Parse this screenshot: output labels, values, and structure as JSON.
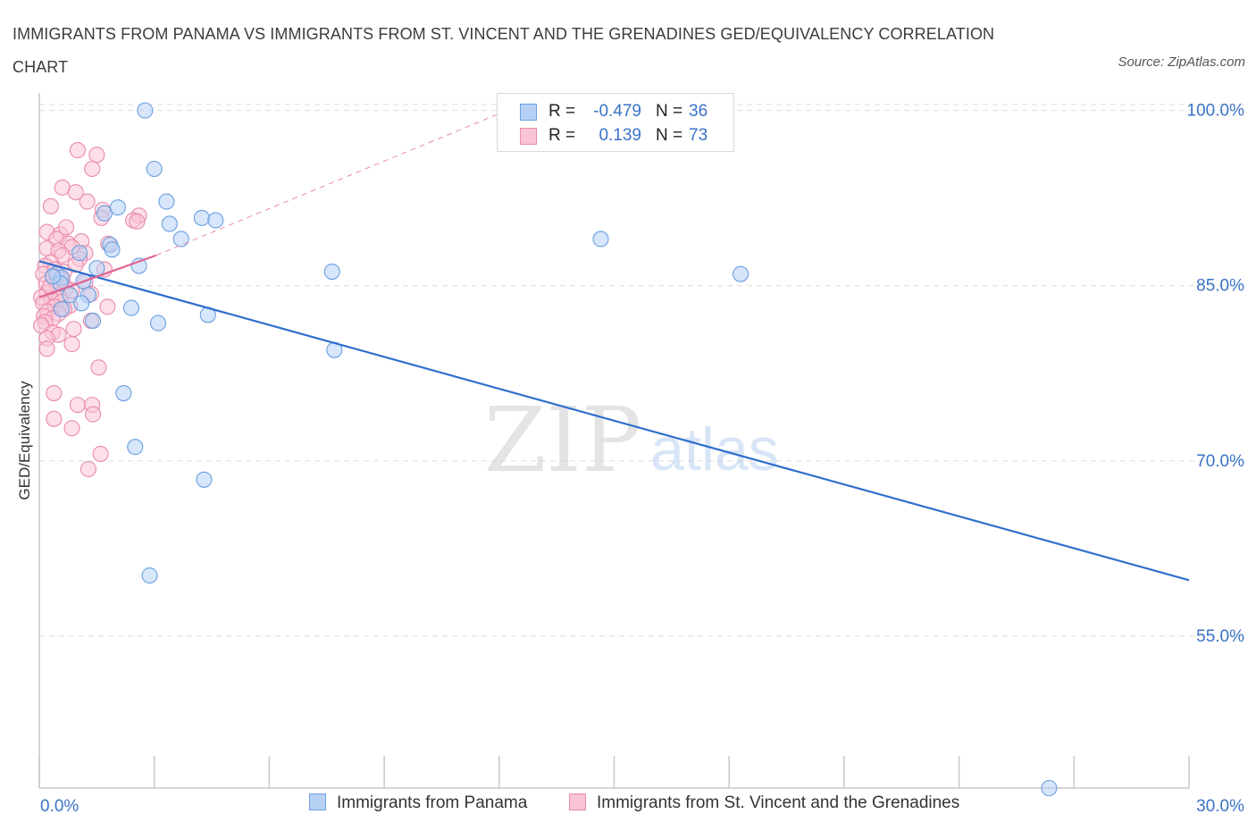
{
  "header": {
    "title": "IMMIGRANTS FROM PANAMA VS IMMIGRANTS FROM ST. VINCENT AND THE GRENADINES GED/EQUIVALENCY CORRELATION CHART",
    "source": "Source: ZipAtlas.com"
  },
  "watermark": {
    "zip": "ZIP",
    "atlas": "atlas"
  },
  "colors": {
    "panama_fill": "#b7d1f5",
    "panama_stroke": "#6a9fe0",
    "panama_line": "#2f6fcc",
    "svg_fill": "#f9c4d5",
    "svg_stroke": "#e98aab",
    "svg_line": "#e06593",
    "axis_text": "#3a73c6",
    "grid": "#dcdcdc"
  },
  "legend": {
    "rows": [
      {
        "r_label": "R =",
        "r_value": "-0.479",
        "n_label": "N =",
        "n_value": "36"
      },
      {
        "r_label": "R =",
        "r_value": "0.139",
        "n_label": "N =",
        "n_value": "73"
      }
    ]
  },
  "bottom_legend": {
    "panama": "Immigrants from Panama",
    "svg": "Immigrants from St. Vincent and the Grenadines"
  },
  "chart_data": {
    "type": "scatter",
    "title": "IMMIGRANTS FROM PANAMA VS IMMIGRANTS FROM ST. VINCENT AND THE GRENADINES GED/EQUIVALENCY CORRELATION CHART",
    "xlabel": "",
    "ylabel": "GED/Equivalency",
    "xlim": [
      0,
      30
    ],
    "ylim": [
      42,
      101.5
    ],
    "x_tick_labels": [
      "0.0%",
      "30.0%"
    ],
    "y_ticks": [
      55,
      70,
      85,
      100
    ],
    "y_tick_labels": [
      "55.0%",
      "70.0%",
      "85.0%",
      "100.0%"
    ],
    "grid": true,
    "series": [
      {
        "name": "Immigrants from Panama",
        "color": "#6a9fe0",
        "R": -0.479,
        "N": 36,
        "trend": {
          "x": [
            0.0,
            30.0
          ],
          "y": [
            87.1,
            59.8
          ]
        },
        "points": [
          [
            2.76,
            100.0
          ],
          [
            3.0,
            95.0
          ],
          [
            3.32,
            92.2
          ],
          [
            4.24,
            90.8
          ],
          [
            4.6,
            90.6
          ],
          [
            3.4,
            90.3
          ],
          [
            2.05,
            91.7
          ],
          [
            1.7,
            91.2
          ],
          [
            3.7,
            89.0
          ],
          [
            1.85,
            88.5
          ],
          [
            1.9,
            88.1
          ],
          [
            1.05,
            87.8
          ],
          [
            2.6,
            86.7
          ],
          [
            1.5,
            86.5
          ],
          [
            0.45,
            86.0
          ],
          [
            0.58,
            85.7
          ],
          [
            0.55,
            85.2
          ],
          [
            0.35,
            85.8
          ],
          [
            1.15,
            85.4
          ],
          [
            0.8,
            84.2
          ],
          [
            1.28,
            84.2
          ],
          [
            1.1,
            83.5
          ],
          [
            0.58,
            83.0
          ],
          [
            2.4,
            83.1
          ],
          [
            4.4,
            82.5
          ],
          [
            1.4,
            82.0
          ],
          [
            3.1,
            81.8
          ],
          [
            7.64,
            86.2
          ],
          [
            14.65,
            89.0
          ],
          [
            18.3,
            86.0
          ],
          [
            7.7,
            79.5
          ],
          [
            2.2,
            75.8
          ],
          [
            2.5,
            71.2
          ],
          [
            4.3,
            68.4
          ],
          [
            2.88,
            60.2
          ],
          [
            26.35,
            42.0
          ]
        ]
      },
      {
        "name": "Immigrants from St. Vincent and the Grenadines",
        "color": "#e98aab",
        "R": 0.139,
        "N": 73,
        "trend": {
          "x": [
            0.0,
            3.05
          ],
          "y": [
            84.0,
            87.6
          ]
        },
        "trend_extension": {
          "x": [
            3.05,
            12.2
          ],
          "y": [
            87.6,
            100.0
          ]
        },
        "points": [
          [
            1.0,
            96.6
          ],
          [
            1.5,
            96.2
          ],
          [
            1.38,
            95.0
          ],
          [
            0.6,
            93.4
          ],
          [
            0.95,
            93.0
          ],
          [
            1.25,
            92.2
          ],
          [
            0.3,
            91.8
          ],
          [
            1.65,
            91.5
          ],
          [
            2.6,
            91.0
          ],
          [
            1.62,
            90.8
          ],
          [
            2.45,
            90.6
          ],
          [
            2.55,
            90.5
          ],
          [
            0.2,
            89.6
          ],
          [
            0.55,
            89.4
          ],
          [
            0.45,
            89.0
          ],
          [
            1.1,
            88.8
          ],
          [
            0.75,
            88.6
          ],
          [
            0.85,
            88.3
          ],
          [
            0.2,
            88.2
          ],
          [
            0.5,
            88.0
          ],
          [
            1.2,
            87.8
          ],
          [
            0.6,
            87.6
          ],
          [
            1.05,
            87.3
          ],
          [
            0.3,
            87.0
          ],
          [
            0.15,
            86.7
          ],
          [
            0.4,
            86.4
          ],
          [
            0.65,
            86.2
          ],
          [
            1.7,
            86.4
          ],
          [
            0.1,
            86.0
          ],
          [
            0.35,
            85.7
          ],
          [
            0.6,
            85.5
          ],
          [
            1.2,
            85.3
          ],
          [
            0.18,
            85.2
          ],
          [
            0.45,
            85.0
          ],
          [
            0.7,
            84.8
          ],
          [
            0.85,
            84.6
          ],
          [
            1.35,
            84.3
          ],
          [
            0.2,
            84.4
          ],
          [
            0.5,
            84.2
          ],
          [
            0.05,
            84.0
          ],
          [
            0.32,
            83.8
          ],
          [
            0.58,
            83.6
          ],
          [
            0.8,
            83.3
          ],
          [
            1.78,
            83.2
          ],
          [
            0.1,
            83.5
          ],
          [
            0.4,
            83.2
          ],
          [
            0.65,
            83.0
          ],
          [
            0.22,
            82.8
          ],
          [
            0.5,
            82.6
          ],
          [
            0.12,
            82.4
          ],
          [
            0.35,
            82.2
          ],
          [
            1.35,
            82.0
          ],
          [
            0.15,
            81.9
          ],
          [
            0.05,
            81.6
          ],
          [
            0.9,
            81.3
          ],
          [
            0.35,
            81.0
          ],
          [
            0.5,
            80.8
          ],
          [
            0.2,
            80.5
          ],
          [
            0.85,
            80.0
          ],
          [
            0.2,
            79.6
          ],
          [
            1.55,
            78.0
          ],
          [
            0.38,
            75.8
          ],
          [
            1.0,
            74.8
          ],
          [
            1.38,
            74.8
          ],
          [
            1.4,
            74.0
          ],
          [
            0.38,
            73.6
          ],
          [
            0.85,
            72.8
          ],
          [
            1.6,
            70.6
          ],
          [
            1.28,
            69.3
          ],
          [
            0.7,
            90.0
          ],
          [
            1.8,
            88.6
          ],
          [
            0.28,
            84.9
          ],
          [
            0.95,
            86.8
          ]
        ]
      }
    ]
  }
}
